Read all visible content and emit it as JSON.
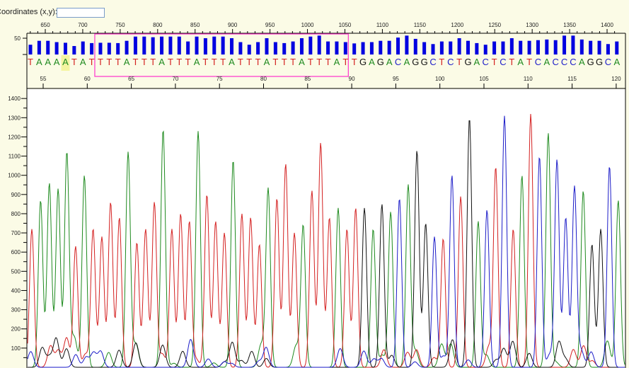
{
  "toolbar": {
    "coordinates_label": "Coordinates (x,y):",
    "coordinates_value": ""
  },
  "colors": {
    "A": "#1e8a1e",
    "T": "#d42020",
    "G": "#111111",
    "C": "#1c1cc8",
    "quality": "#0000e0",
    "selection": "#ff33cc",
    "highlight": "#f4f4a0"
  },
  "chart_data": {
    "type": "line",
    "title": "",
    "sequence": "TAAAATATTTTATTTATTTATTTATTTATTTATTTATTGAGACAGGCTCTGACTCTATCACCCAGGCA",
    "first_base_index": 53,
    "highlighted_base_index": 57,
    "selection_base_range": [
      61,
      89
    ],
    "scan_axis": {
      "ticks": [
        650,
        700,
        750,
        800,
        850,
        900,
        950,
        1000,
        1050,
        1100,
        1150,
        1200,
        1250,
        1300,
        1350,
        1400
      ],
      "range": [
        630,
        1418
      ]
    },
    "base_axis": {
      "ticks": [
        55,
        60,
        65,
        70,
        75,
        80,
        85,
        90,
        95,
        100,
        105,
        110,
        115,
        120
      ]
    },
    "quality_axis": {
      "ticks": [
        50
      ],
      "range": [
        0,
        60
      ]
    },
    "quality": [
      30,
      42,
      42,
      38,
      36,
      26,
      40,
      35,
      36,
      36,
      35,
      42,
      55,
      55,
      53,
      55,
      55,
      55,
      40,
      55,
      50,
      55,
      55,
      50,
      38,
      30,
      38,
      50,
      38,
      35,
      40,
      50,
      55,
      58,
      40,
      40,
      38,
      34,
      38,
      38,
      42,
      42,
      52,
      58,
      48,
      38,
      32,
      40,
      40,
      50,
      42,
      35,
      30,
      40,
      40,
      50,
      42,
      42,
      44,
      46,
      44,
      58,
      58,
      46,
      42,
      42,
      32,
      40
    ],
    "peak_heights": [
      720,
      870,
      960,
      930,
      1120,
      630,
      1000,
      720,
      680,
      860,
      780,
      1120,
      650,
      720,
      860,
      1240,
      720,
      800,
      760,
      1230,
      900,
      760,
      700,
      1080,
      800,
      780,
      640,
      930,
      880,
      1060,
      700,
      740,
      920,
      1170,
      780,
      830,
      720,
      830,
      830,
      720,
      850,
      810,
      880,
      950,
      1130,
      750,
      680,
      670,
      1000,
      890,
      1300,
      760,
      820,
      1040,
      1310,
      720,
      1000,
      1320,
      1100,
      1220,
      1080,
      780,
      940,
      920,
      640,
      720,
      1050,
      870
    ],
    "y_axis": {
      "ticks": [
        100,
        200,
        300,
        400,
        500,
        600,
        700,
        800,
        900,
        1000,
        1100,
        1200,
        1300,
        1400
      ],
      "range": [
        0,
        1450
      ]
    },
    "series": [
      {
        "name": "A",
        "color": "#1e8a1e"
      },
      {
        "name": "T",
        "color": "#d42020"
      },
      {
        "name": "G",
        "color": "#111111"
      },
      {
        "name": "C",
        "color": "#1c1cc8"
      }
    ]
  }
}
